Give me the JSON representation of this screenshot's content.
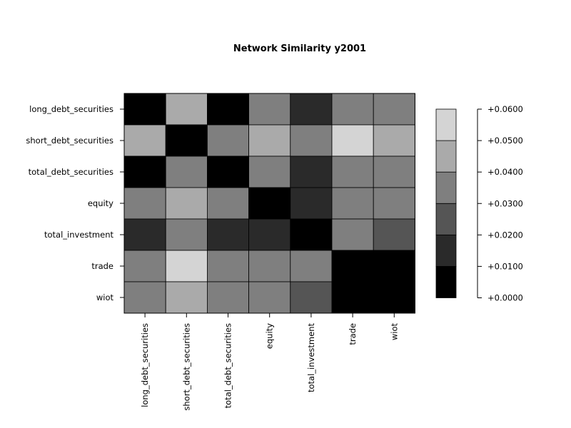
{
  "chart_data": {
    "type": "heatmap",
    "title": "Network Similarity y2001",
    "rows": [
      "long_debt_securities",
      "short_debt_securities",
      "total_debt_securities",
      "equity",
      "total_investment",
      "trade",
      "wiot"
    ],
    "columns": [
      "long_debt_securities",
      "short_debt_securities",
      "total_debt_securities",
      "equity",
      "total_investment",
      "trade",
      "wiot"
    ],
    "values": [
      [
        0.005,
        0.045,
        0.005,
        0.035,
        0.015,
        0.035,
        0.035
      ],
      [
        0.045,
        0.005,
        0.035,
        0.045,
        0.035,
        0.055,
        0.045
      ],
      [
        0.005,
        0.035,
        0.005,
        0.035,
        0.015,
        0.035,
        0.035
      ],
      [
        0.035,
        0.045,
        0.035,
        0.005,
        0.015,
        0.035,
        0.035
      ],
      [
        0.015,
        0.035,
        0.015,
        0.015,
        0.005,
        0.035,
        0.025
      ],
      [
        0.035,
        0.055,
        0.035,
        0.035,
        0.035,
        0.005,
        0.005
      ],
      [
        0.035,
        0.045,
        0.035,
        0.035,
        0.025,
        0.005,
        0.005
      ]
    ],
    "legend": {
      "breaks": [
        0,
        0.01,
        0.02,
        0.03,
        0.04,
        0.05,
        0.06
      ],
      "colors": [
        "#000000",
        "#2a2a2a",
        "#555555",
        "#7f7f7f",
        "#aaaaaa",
        "#d4d4d4"
      ],
      "tick_values": [
        0.06,
        0.05,
        0.04,
        0.03,
        0.02,
        0.01,
        0.0
      ],
      "tick_labels": [
        "+0.0600",
        "+0.0500",
        "+0.0400",
        "+0.0300",
        "+0.0200",
        "+0.0100",
        "+0.0000"
      ],
      "placement": "right"
    }
  }
}
